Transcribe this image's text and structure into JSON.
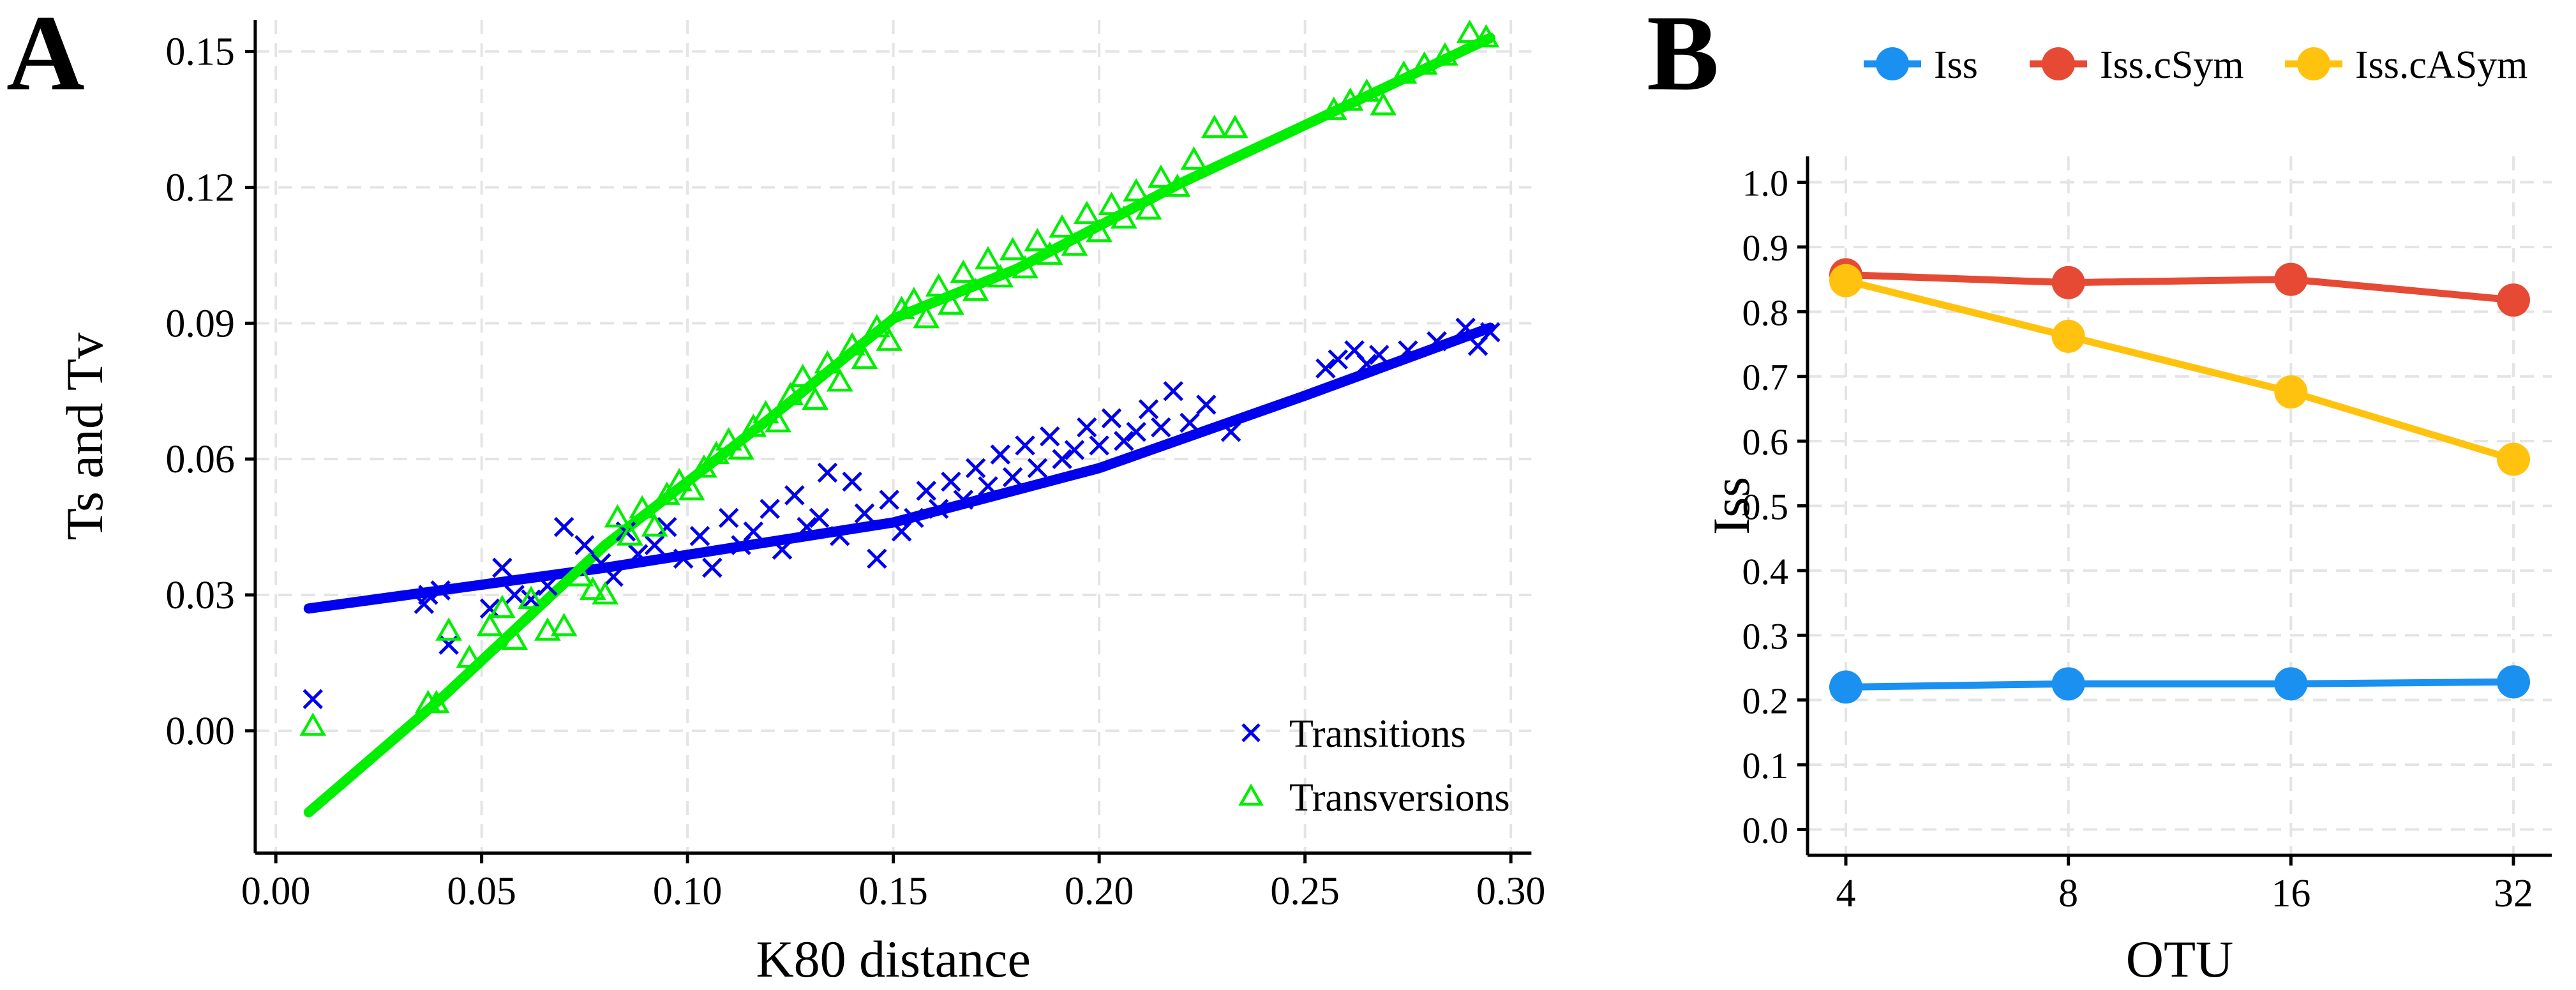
{
  "figure": {
    "panel_a_label": "A",
    "panel_b_label": "B"
  },
  "chart_data": [
    {
      "type": "scatter",
      "panel": "A",
      "xlabel": "K80 distance",
      "ylabel": "Ts and Tv",
      "xlim": [
        -0.005,
        0.305
      ],
      "ylim": [
        -0.027,
        0.157
      ],
      "xticks": [
        0.0,
        0.05,
        0.1,
        0.15,
        0.2,
        0.25,
        0.3
      ],
      "xtick_labels": [
        "0.00",
        "0.05",
        "0.10",
        "0.15",
        "0.20",
        "0.25",
        "0.30"
      ],
      "yticks": [
        0.0,
        0.03,
        0.06,
        0.09,
        0.12,
        0.15
      ],
      "ytick_labels": [
        "0.00",
        "0.03",
        "0.06",
        "0.09",
        "0.12",
        "0.15"
      ],
      "grid": true,
      "legend": {
        "position": "bottom-right",
        "entries": [
          "Transitions",
          "Transversions"
        ]
      },
      "series": [
        {
          "name": "Transitions",
          "marker": "x",
          "color": "#0000ee",
          "fit_line": [
            [
              0.008,
              0.027
            ],
            [
              0.08,
              0.036
            ],
            [
              0.15,
              0.046
            ],
            [
              0.2,
              0.058
            ],
            [
              0.25,
              0.074
            ],
            [
              0.295,
              0.089
            ]
          ],
          "points": [
            [
              0.009,
              0.007
            ],
            [
              0.036,
              0.028
            ],
            [
              0.037,
              0.03
            ],
            [
              0.04,
              0.031
            ],
            [
              0.042,
              0.019
            ],
            [
              0.052,
              0.027
            ],
            [
              0.055,
              0.036
            ],
            [
              0.058,
              0.03
            ],
            [
              0.062,
              0.029
            ],
            [
              0.066,
              0.032
            ],
            [
              0.07,
              0.045
            ],
            [
              0.075,
              0.041
            ],
            [
              0.079,
              0.037
            ],
            [
              0.082,
              0.034
            ],
            [
              0.085,
              0.044
            ],
            [
              0.088,
              0.039
            ],
            [
              0.092,
              0.041
            ],
            [
              0.095,
              0.045
            ],
            [
              0.099,
              0.038
            ],
            [
              0.103,
              0.043
            ],
            [
              0.106,
              0.036
            ],
            [
              0.11,
              0.047
            ],
            [
              0.113,
              0.041
            ],
            [
              0.116,
              0.044
            ],
            [
              0.12,
              0.049
            ],
            [
              0.123,
              0.04
            ],
            [
              0.126,
              0.052
            ],
            [
              0.129,
              0.045
            ],
            [
              0.132,
              0.047
            ],
            [
              0.134,
              0.057
            ],
            [
              0.137,
              0.043
            ],
            [
              0.14,
              0.055
            ],
            [
              0.143,
              0.048
            ],
            [
              0.146,
              0.038
            ],
            [
              0.149,
              0.051
            ],
            [
              0.152,
              0.044
            ],
            [
              0.155,
              0.047
            ],
            [
              0.158,
              0.053
            ],
            [
              0.161,
              0.049
            ],
            [
              0.164,
              0.055
            ],
            [
              0.167,
              0.051
            ],
            [
              0.17,
              0.058
            ],
            [
              0.173,
              0.054
            ],
            [
              0.176,
              0.061
            ],
            [
              0.179,
              0.056
            ],
            [
              0.182,
              0.063
            ],
            [
              0.185,
              0.058
            ],
            [
              0.188,
              0.065
            ],
            [
              0.191,
              0.06
            ],
            [
              0.194,
              0.062
            ],
            [
              0.197,
              0.067
            ],
            [
              0.2,
              0.063
            ],
            [
              0.203,
              0.069
            ],
            [
              0.206,
              0.064
            ],
            [
              0.209,
              0.066
            ],
            [
              0.212,
              0.071
            ],
            [
              0.215,
              0.067
            ],
            [
              0.218,
              0.075
            ],
            [
              0.222,
              0.068
            ],
            [
              0.226,
              0.072
            ],
            [
              0.232,
              0.066
            ],
            [
              0.255,
              0.08
            ],
            [
              0.258,
              0.082
            ],
            [
              0.262,
              0.084
            ],
            [
              0.265,
              0.081
            ],
            [
              0.268,
              0.083
            ],
            [
              0.275,
              0.084
            ],
            [
              0.282,
              0.086
            ],
            [
              0.289,
              0.089
            ],
            [
              0.292,
              0.085
            ],
            [
              0.295,
              0.088
            ]
          ]
        },
        {
          "name": "Transversions",
          "marker": "triangle",
          "color": "#00ee00",
          "fit_line": [
            [
              0.008,
              -0.018
            ],
            [
              0.04,
              0.007
            ],
            [
              0.08,
              0.041
            ],
            [
              0.12,
              0.069
            ],
            [
              0.15,
              0.091
            ],
            [
              0.18,
              0.102
            ],
            [
              0.22,
              0.121
            ],
            [
              0.26,
              0.138
            ],
            [
              0.295,
              0.153
            ]
          ],
          "points": [
            [
              0.009,
              0.001
            ],
            [
              0.037,
              0.006
            ],
            [
              0.039,
              0.006
            ],
            [
              0.042,
              0.022
            ],
            [
              0.047,
              0.016
            ],
            [
              0.052,
              0.023
            ],
            [
              0.055,
              0.027
            ],
            [
              0.058,
              0.02
            ],
            [
              0.062,
              0.029
            ],
            [
              0.066,
              0.022
            ],
            [
              0.07,
              0.023
            ],
            [
              0.074,
              0.034
            ],
            [
              0.077,
              0.031
            ],
            [
              0.08,
              0.03
            ],
            [
              0.083,
              0.047
            ],
            [
              0.086,
              0.043
            ],
            [
              0.089,
              0.049
            ],
            [
              0.092,
              0.045
            ],
            [
              0.095,
              0.052
            ],
            [
              0.098,
              0.055
            ],
            [
              0.101,
              0.053
            ],
            [
              0.104,
              0.058
            ],
            [
              0.107,
              0.061
            ],
            [
              0.11,
              0.064
            ],
            [
              0.113,
              0.062
            ],
            [
              0.116,
              0.067
            ],
            [
              0.119,
              0.07
            ],
            [
              0.122,
              0.068
            ],
            [
              0.125,
              0.074
            ],
            [
              0.128,
              0.078
            ],
            [
              0.131,
              0.073
            ],
            [
              0.134,
              0.081
            ],
            [
              0.137,
              0.077
            ],
            [
              0.14,
              0.085
            ],
            [
              0.143,
              0.082
            ],
            [
              0.146,
              0.089
            ],
            [
              0.149,
              0.086
            ],
            [
              0.152,
              0.093
            ],
            [
              0.155,
              0.095
            ],
            [
              0.158,
              0.091
            ],
            [
              0.161,
              0.098
            ],
            [
              0.164,
              0.094
            ],
            [
              0.167,
              0.101
            ],
            [
              0.17,
              0.097
            ],
            [
              0.173,
              0.104
            ],
            [
              0.176,
              0.1
            ],
            [
              0.179,
              0.106
            ],
            [
              0.182,
              0.102
            ],
            [
              0.185,
              0.108
            ],
            [
              0.188,
              0.105
            ],
            [
              0.191,
              0.111
            ],
            [
              0.194,
              0.107
            ],
            [
              0.197,
              0.114
            ],
            [
              0.2,
              0.11
            ],
            [
              0.203,
              0.116
            ],
            [
              0.206,
              0.113
            ],
            [
              0.209,
              0.119
            ],
            [
              0.212,
              0.115
            ],
            [
              0.215,
              0.122
            ],
            [
              0.219,
              0.12
            ],
            [
              0.223,
              0.126
            ],
            [
              0.228,
              0.133
            ],
            [
              0.233,
              0.133
            ],
            [
              0.257,
              0.137
            ],
            [
              0.261,
              0.139
            ],
            [
              0.265,
              0.141
            ],
            [
              0.269,
              0.138
            ],
            [
              0.274,
              0.145
            ],
            [
              0.279,
              0.147
            ],
            [
              0.284,
              0.149
            ],
            [
              0.29,
              0.154
            ],
            [
              0.294,
              0.153
            ]
          ]
        }
      ]
    },
    {
      "type": "line",
      "panel": "B",
      "xlabel": "OTU",
      "ylabel": "Iss",
      "categories": [
        "4",
        "8",
        "16",
        "32"
      ],
      "ylim": [
        -0.04,
        1.04
      ],
      "yticks": [
        0.0,
        0.1,
        0.2,
        0.3,
        0.4,
        0.5,
        0.6,
        0.7,
        0.8,
        0.9,
        1.0
      ],
      "ytick_labels": [
        "0.0",
        "0.1",
        "0.2",
        "0.3",
        "0.4",
        "0.5",
        "0.6",
        "0.7",
        "0.8",
        "0.9",
        "1.0"
      ],
      "grid": true,
      "legend": {
        "position": "top",
        "entries": [
          "Iss",
          "Iss.cSym",
          "Iss.cASym"
        ]
      },
      "series": [
        {
          "name": "Iss",
          "color": "#1a90f0",
          "values": [
            0.22,
            0.225,
            0.225,
            0.228
          ]
        },
        {
          "name": "Iss.cSym",
          "color": "#e64a35",
          "values": [
            0.857,
            0.845,
            0.85,
            0.818
          ]
        },
        {
          "name": "Iss.cASym",
          "color": "#ffc20f",
          "values": [
            0.848,
            0.762,
            0.676,
            0.572
          ]
        }
      ]
    }
  ]
}
